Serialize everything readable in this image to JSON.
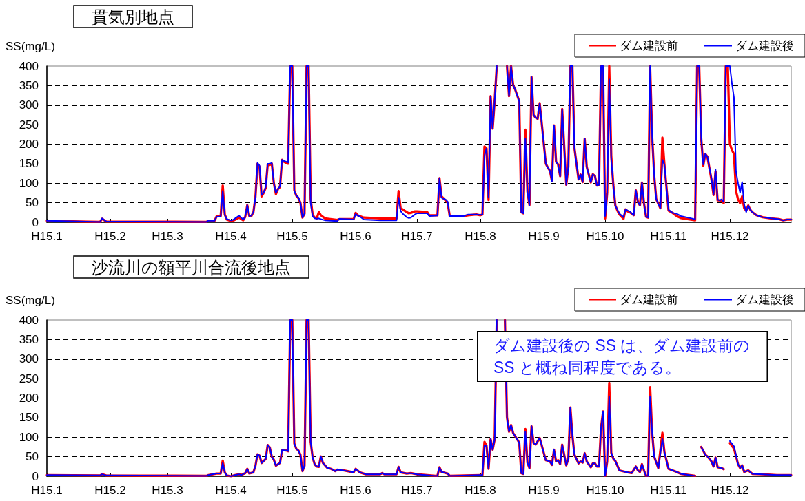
{
  "chart_data": [
    {
      "type": "line",
      "title": "貫気別地点",
      "ylabel": "SS(mg/L)",
      "legend": "top right",
      "grid": "y",
      "xlim": [
        "--01-01",
        "--12-31"
      ],
      "xticks": [
        {
          "value": "--01-01",
          "label": "H15.1"
        },
        {
          "value": "--02-01",
          "label": "H15.2"
        },
        {
          "value": "--03-01",
          "label": "H15.3"
        },
        {
          "value": "--04-01",
          "label": "H15.4"
        },
        {
          "value": "--05-01",
          "label": "H15.5"
        },
        {
          "value": "--06-01",
          "label": "H15.6"
        },
        {
          "value": "--07-01",
          "label": "H15.7"
        },
        {
          "value": "--08-01",
          "label": "H15.8"
        },
        {
          "value": "--09-01",
          "label": "H15.9"
        },
        {
          "value": "--10-01",
          "label": "H15.10"
        },
        {
          "value": "--11-01",
          "label": "H15.11"
        },
        {
          "value": "--12-01",
          "label": "H15.12"
        }
      ],
      "ylim": [
        0,
        400
      ],
      "yticks": [
        0,
        50,
        100,
        150,
        200,
        250,
        300,
        350,
        400
      ],
      "x": [
        "--01-01",
        "--01-17",
        "--01-27",
        "--01-28",
        "--01-30",
        "--03-20",
        "--03-21",
        "--03-24",
        "--03-25",
        "--03-27",
        "--03-28",
        "--03-29",
        "--03-30",
        "--04-01",
        "--04-02",
        "--04-05",
        "--04-07",
        "--04-08",
        "--04-09",
        "--04-10",
        "--04-11",
        "--04-12",
        "--04-13",
        "--04-14",
        "--04-15",
        "--04-16",
        "--04-17",
        "--04-18",
        "--04-19",
        "--04-20",
        "--04-21",
        "--04-22",
        "--04-23",
        "--04-24",
        "--04-25",
        "--04-26",
        "--04-27",
        "--04-28",
        "--04-29",
        "--04-30",
        "--05-01",
        "--05-02",
        "--05-03",
        "--05-04",
        "--05-05",
        "--05-06",
        "--05-07",
        "--05-08",
        "--05-09",
        "--05-10",
        "--05-11",
        "--05-12",
        "--05-13",
        "--05-14",
        "--05-15",
        "--05-17",
        "--05-23",
        "--05-24",
        "--05-31",
        "--06-01",
        "--06-02",
        "--06-03",
        "--06-05",
        "--06-13",
        "--06-21",
        "--06-22",
        "--06-23",
        "--06-24",
        "--06-26",
        "--06-27",
        "--06-28",
        "--06-30",
        "--07-01",
        "--07-06",
        "--07-07",
        "--07-11",
        "--07-12",
        "--07-13",
        "--07-15",
        "--07-16",
        "--07-17",
        "--07-24",
        "--07-26",
        "--07-30",
        "--08-01",
        "--08-02",
        "--08-03",
        "--08-04",
        "--08-05",
        "--08-06",
        "--08-07",
        "--08-08",
        "--08-09",
        "--08-11",
        "--08-14",
        "--08-15",
        "--08-16",
        "--08-17",
        "--08-18",
        "--08-20",
        "--08-21",
        "--08-22",
        "--08-23",
        "--08-24",
        "--08-25",
        "--08-26",
        "--08-27",
        "--08-28",
        "--08-29",
        "--08-30",
        "--09-02",
        "--09-03",
        "--09-04",
        "--09-05",
        "--09-06",
        "--09-07",
        "--09-08",
        "--09-09",
        "--09-10",
        "--09-12",
        "--09-13",
        "--09-14",
        "--09-15",
        "--09-16",
        "--09-18",
        "--09-19",
        "--09-20",
        "--09-21",
        "--09-22",
        "--09-24",
        "--09-25",
        "--09-26",
        "--09-27",
        "--09-28",
        "--09-29",
        "--09-30",
        "--10-01",
        "--10-02",
        "--10-03",
        "--10-04",
        "--10-05",
        "--10-06",
        "--10-07",
        "--10-08",
        "--10-10",
        "--10-11",
        "--10-12",
        "--10-13",
        "--10-15",
        "--10-16",
        "--10-17",
        "--10-18",
        "--10-19",
        "--10-20",
        "--10-21",
        "--10-22",
        "--10-23",
        "--10-24",
        "--10-25",
        "--10-26",
        "--10-28",
        "--10-29",
        "--10-30",
        "--11-01",
        "--11-03",
        "--11-05",
        "--11-07",
        "--11-13",
        "--11-14",
        "--11-15",
        "--11-16",
        "--11-17",
        "--11-18",
        "--11-19",
        "--11-20",
        "--11-22",
        "--11-23",
        "--11-24",
        "--11-25",
        "--11-26",
        "--11-27",
        "--11-28",
        "--11-29",
        "--11-30",
        "--12-01",
        "--12-02",
        "--12-03",
        "--12-04",
        "--12-05",
        "--12-06",
        "--12-07",
        "--12-08",
        "--12-09",
        "--12-10",
        "--12-11",
        "--12-12",
        "--12-14",
        "--12-17",
        "--12-21",
        "--12-25",
        "--12-27",
        "--12-29",
        "--12-31"
      ],
      "series": [
        {
          "name": "ダム建設前",
          "color": "#ff0000",
          "values": [
            4,
            2,
            1,
            9,
            2,
            1,
            4,
            4,
            15,
            16,
            94,
            20,
            7,
            3,
            4,
            12,
            5,
            14,
            44,
            16,
            16,
            26,
            65,
            150,
            142,
            66,
            75,
            88,
            148,
            147,
            150,
            100,
            72,
            85,
            90,
            160,
            155,
            152,
            150,
            400,
            400,
            82,
            68,
            62,
            50,
            12,
            22,
            400,
            400,
            60,
            18,
            12,
            10,
            26,
            18,
            10,
            6,
            8,
            8,
            24,
            18,
            16,
            12,
            10,
            10,
            80,
            36,
            33,
            26,
            23,
            24,
            28,
            28,
            26,
            18,
            18,
            113,
            66,
            56,
            50,
            16,
            16,
            18,
            20,
            18,
            20,
            194,
            189,
            57,
            323,
            240,
            313,
            400,
            null,
            400,
            323,
            400,
            352,
            340,
            310,
            26,
            23,
            237,
            79,
            44,
            372,
            275,
            268,
            265,
            305,
            150,
            140,
            132,
            105,
            248,
            155,
            148,
            118,
            290,
            96,
            142,
            400,
            400,
            190,
            110,
            122,
            103,
            214,
            142,
            102,
            123,
            119,
            94,
            96,
            400,
            400,
            10,
            76,
            400,
            170,
            96,
            43,
            30,
            20,
            9,
            33,
            28,
            26,
            18,
            82,
            53,
            43,
            102,
            49,
            14,
            12,
            400,
            220,
            120,
            59,
            36,
            217,
            148,
            30,
            24,
            16,
            11,
            6,
            5,
            400,
            400,
            214,
            145,
            175,
            168,
            109,
            70,
            130,
            56,
            56,
            55,
            49,
            400,
            400,
            201,
            185,
            175,
            80,
            59,
            49,
            66,
            36,
            30,
            43,
            32,
            26,
            18,
            13,
            10,
            8,
            5,
            7,
            7
          ]
        },
        {
          "name": "ダム建設後",
          "color": "#0000ff",
          "values": [
            4,
            2,
            1,
            10,
            2,
            1,
            4,
            4,
            14,
            15,
            80,
            19,
            8,
            5,
            6,
            17,
            7,
            14,
            44,
            16,
            17,
            26,
            63,
            152,
            145,
            70,
            76,
            90,
            150,
            150,
            152,
            100,
            75,
            85,
            92,
            160,
            157,
            155,
            153,
            400,
            400,
            80,
            68,
            64,
            50,
            12,
            22,
            400,
            400,
            49,
            15,
            10,
            9,
            10,
            8,
            5,
            3,
            9,
            7,
            21,
            17,
            15,
            7,
            5,
            5,
            63,
            29,
            22,
            13,
            11,
            12,
            20,
            23,
            23,
            16,
            17,
            113,
            63,
            58,
            53,
            16,
            16,
            20,
            20,
            19,
            20,
            171,
            189,
            63,
            323,
            240,
            313,
            400,
            null,
            400,
            323,
            400,
            352,
            340,
            310,
            26,
            23,
            215,
            79,
            44,
            372,
            275,
            268,
            265,
            305,
            150,
            140,
            132,
            105,
            248,
            155,
            148,
            118,
            290,
            96,
            142,
            400,
            400,
            190,
            110,
            122,
            103,
            214,
            142,
            102,
            123,
            119,
            94,
            96,
            400,
            400,
            16,
            76,
            366,
            160,
            96,
            43,
            32,
            22,
            13,
            33,
            30,
            28,
            18,
            82,
            53,
            43,
            102,
            49,
            14,
            12,
            400,
            220,
            120,
            59,
            36,
            160,
            148,
            32,
            24,
            22,
            16,
            9,
            8,
            400,
            400,
            214,
            148,
            175,
            168,
            112,
            72,
            135,
            58,
            56,
            59,
            52,
            400,
            400,
            400,
            356,
            320,
            130,
            100,
            76,
            103,
            46,
            26,
            43,
            32,
            26,
            18,
            13,
            10,
            8,
            5,
            7,
            7
          ]
        }
      ]
    },
    {
      "type": "line",
      "title": "沙流川の額平川合流後地点",
      "ylabel": "SS(mg/L)",
      "legend": "top right",
      "grid": "y",
      "annotations": [
        "ダム建設後の SS は、ダム建設前の\nSS と概ね同程度である。"
      ],
      "xlim": [
        "--01-01",
        "--12-31"
      ],
      "xticks": [
        {
          "value": "--01-01",
          "label": "H15.1"
        },
        {
          "value": "--02-01",
          "label": "H15.2"
        },
        {
          "value": "--03-01",
          "label": "H15.3"
        },
        {
          "value": "--04-01",
          "label": "H15.4"
        },
        {
          "value": "--05-01",
          "label": "H15.5"
        },
        {
          "value": "--06-01",
          "label": "H15.6"
        },
        {
          "value": "--07-01",
          "label": "H15.7"
        },
        {
          "value": "--08-01",
          "label": "H15.8"
        },
        {
          "value": "--09-01",
          "label": "H15.9"
        },
        {
          "value": "--10-01",
          "label": "H15.10"
        },
        {
          "value": "--11-01",
          "label": "H15.11"
        },
        {
          "value": "--12-01",
          "label": "H15.12"
        }
      ],
      "ylim": [
        0,
        400
      ],
      "yticks": [
        0,
        50,
        100,
        150,
        200,
        250,
        300,
        350,
        400
      ],
      "x": [
        "--01-01",
        "--01-27",
        "--01-28",
        "--01-30",
        "--03-20",
        "--03-21",
        "--03-25",
        "--03-27",
        "--03-28",
        "--03-29",
        "--03-30",
        "--04-01",
        "--04-03",
        "--04-05",
        "--04-06",
        "--04-08",
        "--04-09",
        "--04-10",
        "--04-12",
        "--04-13",
        "--04-14",
        "--04-15",
        "--04-16",
        "--04-18",
        "--04-19",
        "--04-20",
        "--04-21",
        "--04-22",
        "--04-23",
        "--04-25",
        "--04-26",
        "--04-28",
        "--04-29",
        "--04-30",
        "--05-01",
        "--05-02",
        "--05-03",
        "--05-04",
        "--05-05",
        "--05-06",
        "--05-07",
        "--05-08",
        "--05-09",
        "--05-10",
        "--05-11",
        "--05-12",
        "--05-13",
        "--05-14",
        "--05-15",
        "--05-16",
        "--05-18",
        "--05-20",
        "--05-22",
        "--05-23",
        "--05-26",
        "--05-31",
        "--06-01",
        "--06-03",
        "--06-06",
        "--06-13",
        "--06-14",
        "--06-15",
        "--06-21",
        "--06-22",
        "--06-23",
        "--06-26",
        "--06-28",
        "--07-01",
        "--07-10",
        "--07-11",
        "--07-12",
        "--07-13",
        "--07-16",
        "--07-17",
        "--08-01",
        "--08-02",
        "--08-03",
        "--08-04",
        "--08-05",
        "--08-06",
        "--08-07",
        "--08-08",
        "--08-09",
        "--08-11",
        "--08-13",
        "--08-14",
        "--08-15",
        "--08-16",
        "--08-17",
        "--08-20",
        "--08-21",
        "--08-22",
        "--08-23",
        "--08-24",
        "--08-25",
        "--08-26",
        "--08-27",
        "--08-28",
        "--08-30",
        "--09-02",
        "--09-04",
        "--09-05",
        "--09-06",
        "--09-07",
        "--09-08",
        "--09-09",
        "--09-10",
        "--09-12",
        "--09-13",
        "--09-14",
        "--09-15",
        "--09-16",
        "--09-18",
        "--09-19",
        "--09-20",
        "--09-21",
        "--09-22",
        "--09-24",
        "--09-25",
        "--09-26",
        "--09-27",
        "--09-28",
        "--09-29",
        "--09-30",
        "--10-01",
        "--10-02",
        "--10-03",
        "--10-04",
        "--10-05",
        "--10-06",
        "--10-08",
        "--10-11",
        "--10-14",
        "--10-16",
        "--10-17",
        "--10-18",
        "--10-19",
        "--10-20",
        "--10-21",
        "--10-22",
        "--10-23",
        "--10-24",
        "--10-25",
        "--10-27",
        "--10-29",
        "--10-30",
        "--11-01",
        "--11-03",
        "--11-05",
        "--11-07",
        "--11-14",
        "--11-15",
        "--11-17",
        "--11-19",
        "--11-20",
        "--11-22",
        "--11-23",
        "--11-24",
        "--11-25",
        "--11-27",
        "--11-28",
        "--11-29",
        "--12-01",
        "--12-03",
        "--12-05",
        "--12-06",
        "--12-07",
        "--12-08",
        "--12-10",
        "--12-12",
        "--12-17",
        "--12-24",
        "--12-31"
      ],
      "series": [
        {
          "name": "ダム建設前",
          "color": "#ff0000",
          "values": [
            3,
            2,
            5,
            2,
            1,
            3,
            7,
            7,
            40,
            10,
            2,
            0,
            3,
            5,
            3,
            8,
            19,
            7,
            10,
            27,
            56,
            53,
            34,
            44,
            80,
            74,
            50,
            42,
            27,
            34,
            67,
            66,
            64,
            400,
            400,
            84,
            70,
            66,
            55,
            13,
            27,
            400,
            400,
            88,
            47,
            30,
            25,
            24,
            51,
            34,
            22,
            19,
            13,
            17,
            15,
            10,
            19,
            10,
            5,
            5,
            8,
            5,
            5,
            24,
            10,
            7,
            8,
            5,
            1,
            1,
            23,
            11,
            7,
            1,
            3,
            3,
            88,
            78,
            19,
            95,
            68,
            95,
            400,
            null,
            400,
            151,
            114,
            131,
            111,
            86,
            8,
            6,
            121,
            35,
            21,
            128,
            85,
            81,
            98,
            41,
            38,
            29,
            68,
            38,
            41,
            31,
            81,
            28,
            45,
            176,
            104,
            55,
            33,
            38,
            35,
            59,
            38,
            23,
            33,
            33,
            25,
            25,
            124,
            166,
            1,
            38,
            239,
            60,
            45,
            39,
            15,
            11,
            8,
            25,
            15,
            11,
            31,
            15,
            1,
            1,
            228,
            111,
            50,
            21,
            111,
            62,
            19,
            15,
            11,
            6,
            1,
            null,
            75,
            55,
            51,
            38,
            25,
            48,
            23,
            21,
            18,
            null,
            85,
            71,
            31,
            21,
            28,
            11,
            15,
            6,
            5,
            3,
            3
          ]
        },
        {
          "name": "ダム建設後",
          "color": "#0000ff",
          "values": [
            3,
            2,
            5,
            2,
            1,
            3,
            7,
            7,
            34,
            10,
            2,
            0,
            3,
            5,
            3,
            8,
            19,
            7,
            10,
            27,
            56,
            53,
            34,
            44,
            80,
            74,
            50,
            42,
            27,
            34,
            67,
            66,
            64,
            400,
            400,
            84,
            70,
            66,
            55,
            13,
            27,
            400,
            400,
            88,
            47,
            30,
            25,
            24,
            51,
            34,
            22,
            19,
            13,
            17,
            15,
            10,
            19,
            10,
            5,
            5,
            8,
            5,
            5,
            24,
            10,
            7,
            8,
            5,
            1,
            1,
            23,
            11,
            7,
            1,
            3,
            3,
            78,
            78,
            19,
            95,
            68,
            95,
            400,
            null,
            400,
            151,
            114,
            131,
            111,
            86,
            8,
            6,
            114,
            35,
            21,
            128,
            85,
            81,
            98,
            41,
            38,
            29,
            68,
            38,
            41,
            31,
            81,
            28,
            45,
            176,
            104,
            55,
            33,
            38,
            35,
            59,
            38,
            23,
            33,
            33,
            25,
            25,
            124,
            166,
            1,
            38,
            204,
            60,
            45,
            39,
            15,
            11,
            8,
            25,
            15,
            11,
            31,
            15,
            1,
            1,
            204,
            111,
            50,
            21,
            95,
            62,
            19,
            15,
            11,
            6,
            1,
            null,
            75,
            55,
            51,
            38,
            25,
            48,
            23,
            21,
            18,
            null,
            90,
            77,
            31,
            21,
            28,
            11,
            15,
            6,
            5,
            3,
            3
          ]
        }
      ]
    }
  ]
}
